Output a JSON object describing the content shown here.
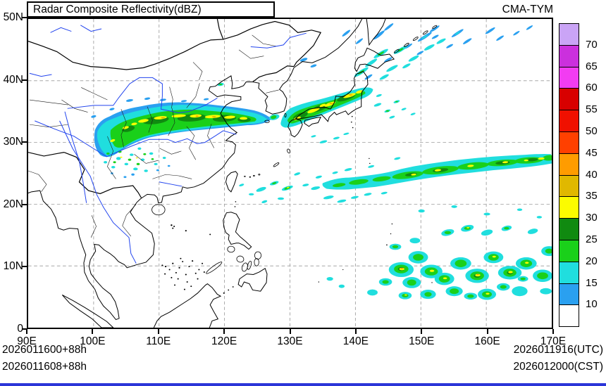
{
  "header": {
    "title": "Radar Composite Reflectivity(dBZ)",
    "model": "CMA-TYM"
  },
  "axes": {
    "x": {
      "labels": [
        "90E",
        "100E",
        "110E",
        "120E",
        "130E",
        "140E",
        "150E",
        "160E",
        "170E"
      ]
    },
    "y": {
      "labels": [
        "50N",
        "40N",
        "30N",
        "20N",
        "10N",
        "0"
      ]
    }
  },
  "colorbar": {
    "levels": [
      "70",
      "65",
      "60",
      "55",
      "50",
      "45",
      "40",
      "35",
      "30",
      "25",
      "20",
      "15",
      "10"
    ],
    "colors": [
      "#caa4f6",
      "#cb30dd",
      "#f23cf2",
      "#d80000",
      "#f01000",
      "#ff4000",
      "#ff9c00",
      "#e0b800",
      "#fcfc00",
      "#108a10",
      "#1ad01a",
      "#20dede",
      "#2aa0f0",
      "#ffffff"
    ]
  },
  "footer": {
    "init_utc": "2026011600+88h",
    "init_cst": "2026011608+88h",
    "valid_utc": "2026011916(UTC)",
    "valid_cst": "2026012000(CST)"
  },
  "chart_data": {
    "type": "heatmap",
    "title": "Radar Composite Reflectivity(dBZ)",
    "model": "CMA-TYM",
    "units": "dBZ",
    "x_axis": {
      "label": "longitude",
      "ticks": [
        "90E",
        "100E",
        "110E",
        "120E",
        "130E",
        "140E",
        "150E",
        "160E",
        "170E"
      ],
      "range_deg_e": [
        90,
        170
      ]
    },
    "y_axis": {
      "label": "latitude",
      "ticks": [
        "0",
        "10N",
        "20N",
        "30N",
        "40N",
        "50N"
      ],
      "range_deg_n": [
        0,
        50
      ]
    },
    "grid": true,
    "legend_position": "right",
    "colorbar_levels_dbz": [
      10,
      15,
      20,
      25,
      30,
      35,
      40,
      45,
      50,
      55,
      60,
      65,
      70
    ],
    "colorbar_colors_top_to_bottom": [
      "#caa4f6",
      "#cb30dd",
      "#f23cf2",
      "#d80000",
      "#f01000",
      "#ff4000",
      "#ff9c00",
      "#e0b800",
      "#fcfc00",
      "#108a10",
      "#1ad01a",
      "#20dede",
      "#2aa0f0",
      "#ffffff"
    ],
    "forecast": {
      "init_utc": "2026011600+88h",
      "init_cst": "2026011608+88h",
      "valid_utc": "2026011916(UTC)",
      "valid_cst": "2026012000(CST)"
    },
    "echo_regions": [
      {
        "area": "central and eastern China rain band",
        "extent": "100E-127E, 27N-37N",
        "typical_dbz": [
          15,
          45
        ]
      },
      {
        "area": "Korea Strait and Japan",
        "extent": "128E-147E, 32N-44N",
        "typical_dbz": [
          15,
          45
        ]
      },
      {
        "area": "subtropical western Pacific band",
        "extent": "135E-170E, 21N-28N",
        "typical_dbz": [
          15,
          40
        ]
      },
      {
        "area": "tropical western Pacific cells",
        "extent": "145E-170E, 4N-18N",
        "typical_dbz": [
          15,
          40
        ]
      },
      {
        "area": "high-latitude streaks near Sakhalin and Kurils",
        "extent": "138E-167E, 46N-50N",
        "typical_dbz": [
          10,
          20
        ]
      },
      {
        "area": "Sichuan basin scattered showers",
        "extent": "100E-111E, 26N-32N",
        "typical_dbz": [
          10,
          25
        ]
      }
    ]
  }
}
